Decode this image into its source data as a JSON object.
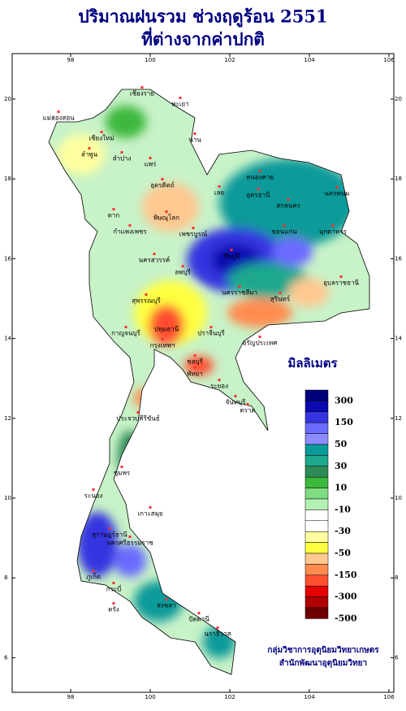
{
  "title": [
    "ปริมาณฝนรวม ช่วงฤดูร้อน 2551",
    "ที่ต่างจากค่าปกติ"
  ],
  "map": {
    "xticks": [
      98,
      100,
      102,
      104,
      106
    ],
    "yticks": [
      20,
      18,
      16,
      14,
      12,
      10,
      8,
      6
    ],
    "places": [
      "เชียงราย",
      "แม่ฮ่องสอน",
      "พะเยา",
      "เชียงใหม่",
      "น่าน",
      "ลำพูน",
      "ลำปาง",
      "แพร่",
      "อุตรดิตถ์",
      "ตาก",
      "พิษณุโลก",
      "กำแพงเพชร",
      "เพชรบูรณ์",
      "นครสวรรค์",
      "หนองคาย",
      "อุดรธานี",
      "สกลนคร",
      "นครพนม",
      "เลย",
      "ขอนแก่น",
      "มุกดาหาร",
      "ชัยภูมิ",
      "อุบลราชธานี",
      "นครราชสีมา",
      "สุรินทร์",
      "ลพบุรี",
      "สุพรรณบุรี",
      "กาญจนบุรี",
      "ปทุมธานี",
      "กรุงเทพฯ",
      "ปราจีนบุรี",
      "อรัญประเทศ",
      "ชลบุรี",
      "พัทยา",
      "ระยอง",
      "จันทบุรี",
      "ตราด",
      "ประจวบคีรีขันธ์",
      "ชุมพร",
      "ระนอง",
      "เกาะสมุย",
      "สุราษฎร์ธานี",
      "นครศรีธรรมราช",
      "ภูเก็ต",
      "กระบี่",
      "ตรัง",
      "สงขลา",
      "ปัตตานี",
      "นราธิวาส"
    ]
  },
  "legend": {
    "title": "มิลลิเมตร",
    "colors": [
      "#00007a",
      "#0a0ab0",
      "#3535e0",
      "#6a6aff",
      "#8c8cff",
      "#0a9a9a",
      "#1ea88c",
      "#2e8b57",
      "#3cb83c",
      "#7fdc7f",
      "#b5f0b5",
      "#ffffff",
      "#ffffff",
      "#ffffa0",
      "#ffff40",
      "#ffc890",
      "#ff8c50",
      "#ff5030",
      "#e60000",
      "#b00000",
      "#6e0000"
    ],
    "labels": [
      300,
      150,
      50,
      30,
      10,
      -10,
      -30,
      -50,
      -150,
      -300,
      -500
    ]
  },
  "credit": [
    "กลุ่มวิชาการอุตุนิยมวิทยาเกษตร",
    "สำนักพัฒนาอุตุนิยมวิทยา"
  ]
}
